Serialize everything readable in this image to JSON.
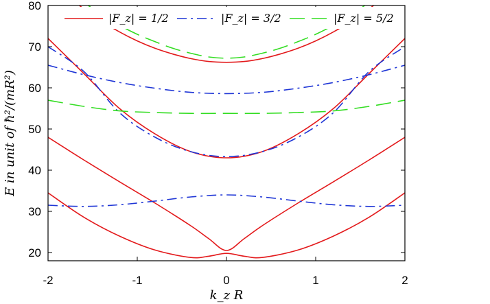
{
  "chart_data": {
    "type": "line",
    "title": "",
    "xlabel": "k_z R",
    "ylabel": "E   in unit of ħ²/(mR²)",
    "xlim": [
      -2,
      2
    ],
    "ylim": [
      18,
      80
    ],
    "xticks": [
      -2,
      -1,
      0,
      1,
      2
    ],
    "yticks": [
      20,
      30,
      40,
      50,
      60,
      70,
      80
    ],
    "grid": false,
    "legend_position": "top",
    "legend": [
      {
        "label": "|F_z| = 1/2",
        "color": "#e31a1c",
        "style": "solid"
      },
      {
        "label": "|F_z| = 3/2",
        "color": "#1f36d6",
        "style": "dashdot"
      },
      {
        "label": "|F_z| = 5/2",
        "color": "#33dd22",
        "style": "dashed"
      }
    ],
    "series": [
      {
        "name": "|F_z| = 1/2 band 1",
        "group": "|F_z| = 1/2",
        "color": "#e31a1c",
        "style": "solid",
        "x": [
          -2,
          -1.6,
          -1.2,
          -0.8,
          -0.4,
          -0.2,
          0,
          0.2,
          0.4,
          0.8,
          1.2,
          1.6,
          2
        ],
        "y": [
          34.5,
          28.6,
          24.0,
          20.6,
          18.8,
          19.1,
          19.8,
          19.1,
          18.8,
          20.6,
          24.0,
          28.6,
          34.5
        ]
      },
      {
        "name": "|F_z| = 1/2 band 2",
        "group": "|F_z| = 1/2",
        "color": "#e31a1c",
        "style": "solid",
        "x": [
          -2,
          -1.6,
          -1.2,
          -0.8,
          -0.4,
          -0.2,
          0,
          0.2,
          0.4,
          0.8,
          1.2,
          1.6,
          2
        ],
        "y": [
          48.0,
          42.5,
          37.2,
          32.0,
          26.5,
          23.4,
          20.5,
          23.4,
          26.5,
          32.0,
          37.2,
          42.5,
          48.0
        ]
      },
      {
        "name": "|F_z| = 1/2 band 3",
        "group": "|F_z| = 1/2",
        "color": "#e31a1c",
        "style": "solid",
        "x": [
          -2,
          -1.6,
          -1.2,
          -0.8,
          -0.4,
          0,
          0.4,
          0.8,
          1.2,
          1.6,
          2
        ],
        "y": [
          72.0,
          63.5,
          55.0,
          48.8,
          44.5,
          43.0,
          44.5,
          48.8,
          55.0,
          63.5,
          72.0
        ]
      },
      {
        "name": "|F_z| = 1/2 band 4",
        "group": "|F_z| = 1/2",
        "color": "#e31a1c",
        "style": "solid",
        "x": [
          -1.65,
          -1.4,
          -1.2,
          -1,
          -0.8,
          -0.6,
          -0.4,
          -0.2,
          0,
          0.2,
          0.4,
          0.6,
          0.8,
          1,
          1.2,
          1.4,
          1.65
        ],
        "y": [
          80.0,
          76.2,
          73.6,
          71.4,
          69.6,
          68.2,
          67.1,
          66.4,
          66.2,
          66.4,
          67.1,
          68.2,
          69.6,
          71.4,
          73.6,
          76.2,
          80.0
        ]
      },
      {
        "name": "|F_z| = 3/2 band 1",
        "group": "|F_z| = 3/2",
        "color": "#1f36d6",
        "style": "dashdot",
        "x": [
          -2,
          -1.6,
          -1.2,
          -0.8,
          -0.4,
          0,
          0.4,
          0.8,
          1.2,
          1.6,
          2
        ],
        "y": [
          31.5,
          31.2,
          31.6,
          32.5,
          33.5,
          34.0,
          33.5,
          32.5,
          31.6,
          31.2,
          31.5
        ]
      },
      {
        "name": "|F_z| = 3/2 band 2",
        "group": "|F_z| = 3/2",
        "color": "#1f36d6",
        "style": "dashdot",
        "x": [
          -2,
          -1.6,
          -1.2,
          -0.8,
          -0.4,
          0,
          0.4,
          0.8,
          1.2,
          1.6,
          2
        ],
        "y": [
          70.0,
          64.0,
          54.0,
          48.0,
          44.5,
          43.3,
          44.5,
          48.0,
          54.0,
          64.0,
          70.0
        ]
      },
      {
        "name": "|F_z| = 3/2 band 3",
        "group": "|F_z| = 3/2",
        "color": "#1f36d6",
        "style": "dashdot",
        "x": [
          -2,
          -1.6,
          -1.2,
          -0.8,
          -0.4,
          0,
          0.4,
          0.8,
          1.2,
          1.6,
          2
        ],
        "y": [
          65.5,
          63.2,
          61.3,
          59.9,
          58.9,
          58.6,
          58.9,
          59.9,
          61.3,
          63.2,
          65.5
        ]
      },
      {
        "name": "|F_z| = 5/2 band 1",
        "group": "|F_z| = 5/2",
        "color": "#33dd22",
        "style": "dashed",
        "x": [
          -2,
          -1.6,
          -1.2,
          -0.8,
          -0.4,
          0,
          0.4,
          0.8,
          1.2,
          1.6,
          2
        ],
        "y": [
          57.0,
          55.5,
          54.4,
          54.0,
          53.8,
          53.8,
          53.8,
          54.0,
          54.4,
          55.5,
          57.0
        ]
      },
      {
        "name": "|F_z| = 5/2 band 2",
        "group": "|F_z| = 5/2",
        "color": "#33dd22",
        "style": "dashed",
        "x": [
          -1.55,
          -1.4,
          -1.2,
          -1,
          -0.8,
          -0.6,
          -0.4,
          -0.2,
          0,
          0.2,
          0.4,
          0.6,
          0.8,
          1,
          1.2,
          1.4,
          1.55
        ],
        "y": [
          80.0,
          77.8,
          75.2,
          73.0,
          71.2,
          69.6,
          68.4,
          67.5,
          67.2,
          67.5,
          68.4,
          69.6,
          71.2,
          73.0,
          75.2,
          77.8,
          80.0
        ]
      }
    ]
  }
}
